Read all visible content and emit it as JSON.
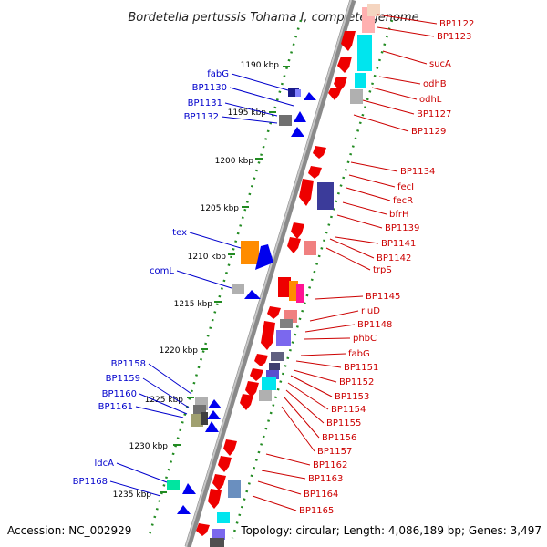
{
  "title": "Bordetella pertussis Tohama I, complete genome",
  "footer": {
    "accession": "Accession: NC_002929",
    "summary": "Topology: circular; Length: 4,086,189 bp; Genes: 3,497"
  },
  "colors": {
    "forward_label": "#0000cc",
    "reverse_label": "#cc0000",
    "backbone": "#888888",
    "ticks": "#228b22"
  },
  "kbp_ticks": [
    "1190 kbp",
    "1195 kbp",
    "1200 kbp",
    "1205 kbp",
    "1210 kbp",
    "1215 kbp",
    "1220 kbp",
    "1225 kbp",
    "1230 kbp",
    "1235 kbp"
  ],
  "forward_genes": [
    "fabG",
    "BP1130",
    "BP1131",
    "BP1132",
    "tex",
    "comL",
    "BP1158",
    "BP1159",
    "BP1160",
    "BP1161",
    "ldcA",
    "BP1168"
  ],
  "reverse_genes": [
    "BP1122",
    "BP1123",
    "sucA",
    "odhB",
    "odhL",
    "BP1127",
    "BP1129",
    "BP1134",
    "fecI",
    "fecR",
    "bfrH",
    "BP1139",
    "BP1141",
    "BP1142",
    "trpS",
    "BP1145",
    "rluD",
    "BP1148",
    "phbC",
    "fabG",
    "BP1151",
    "BP1152",
    "BP1153",
    "BP1154",
    "BP1155",
    "BP1156",
    "BP1157",
    "BP1162",
    "BP1163",
    "BP1164",
    "BP1165"
  ]
}
